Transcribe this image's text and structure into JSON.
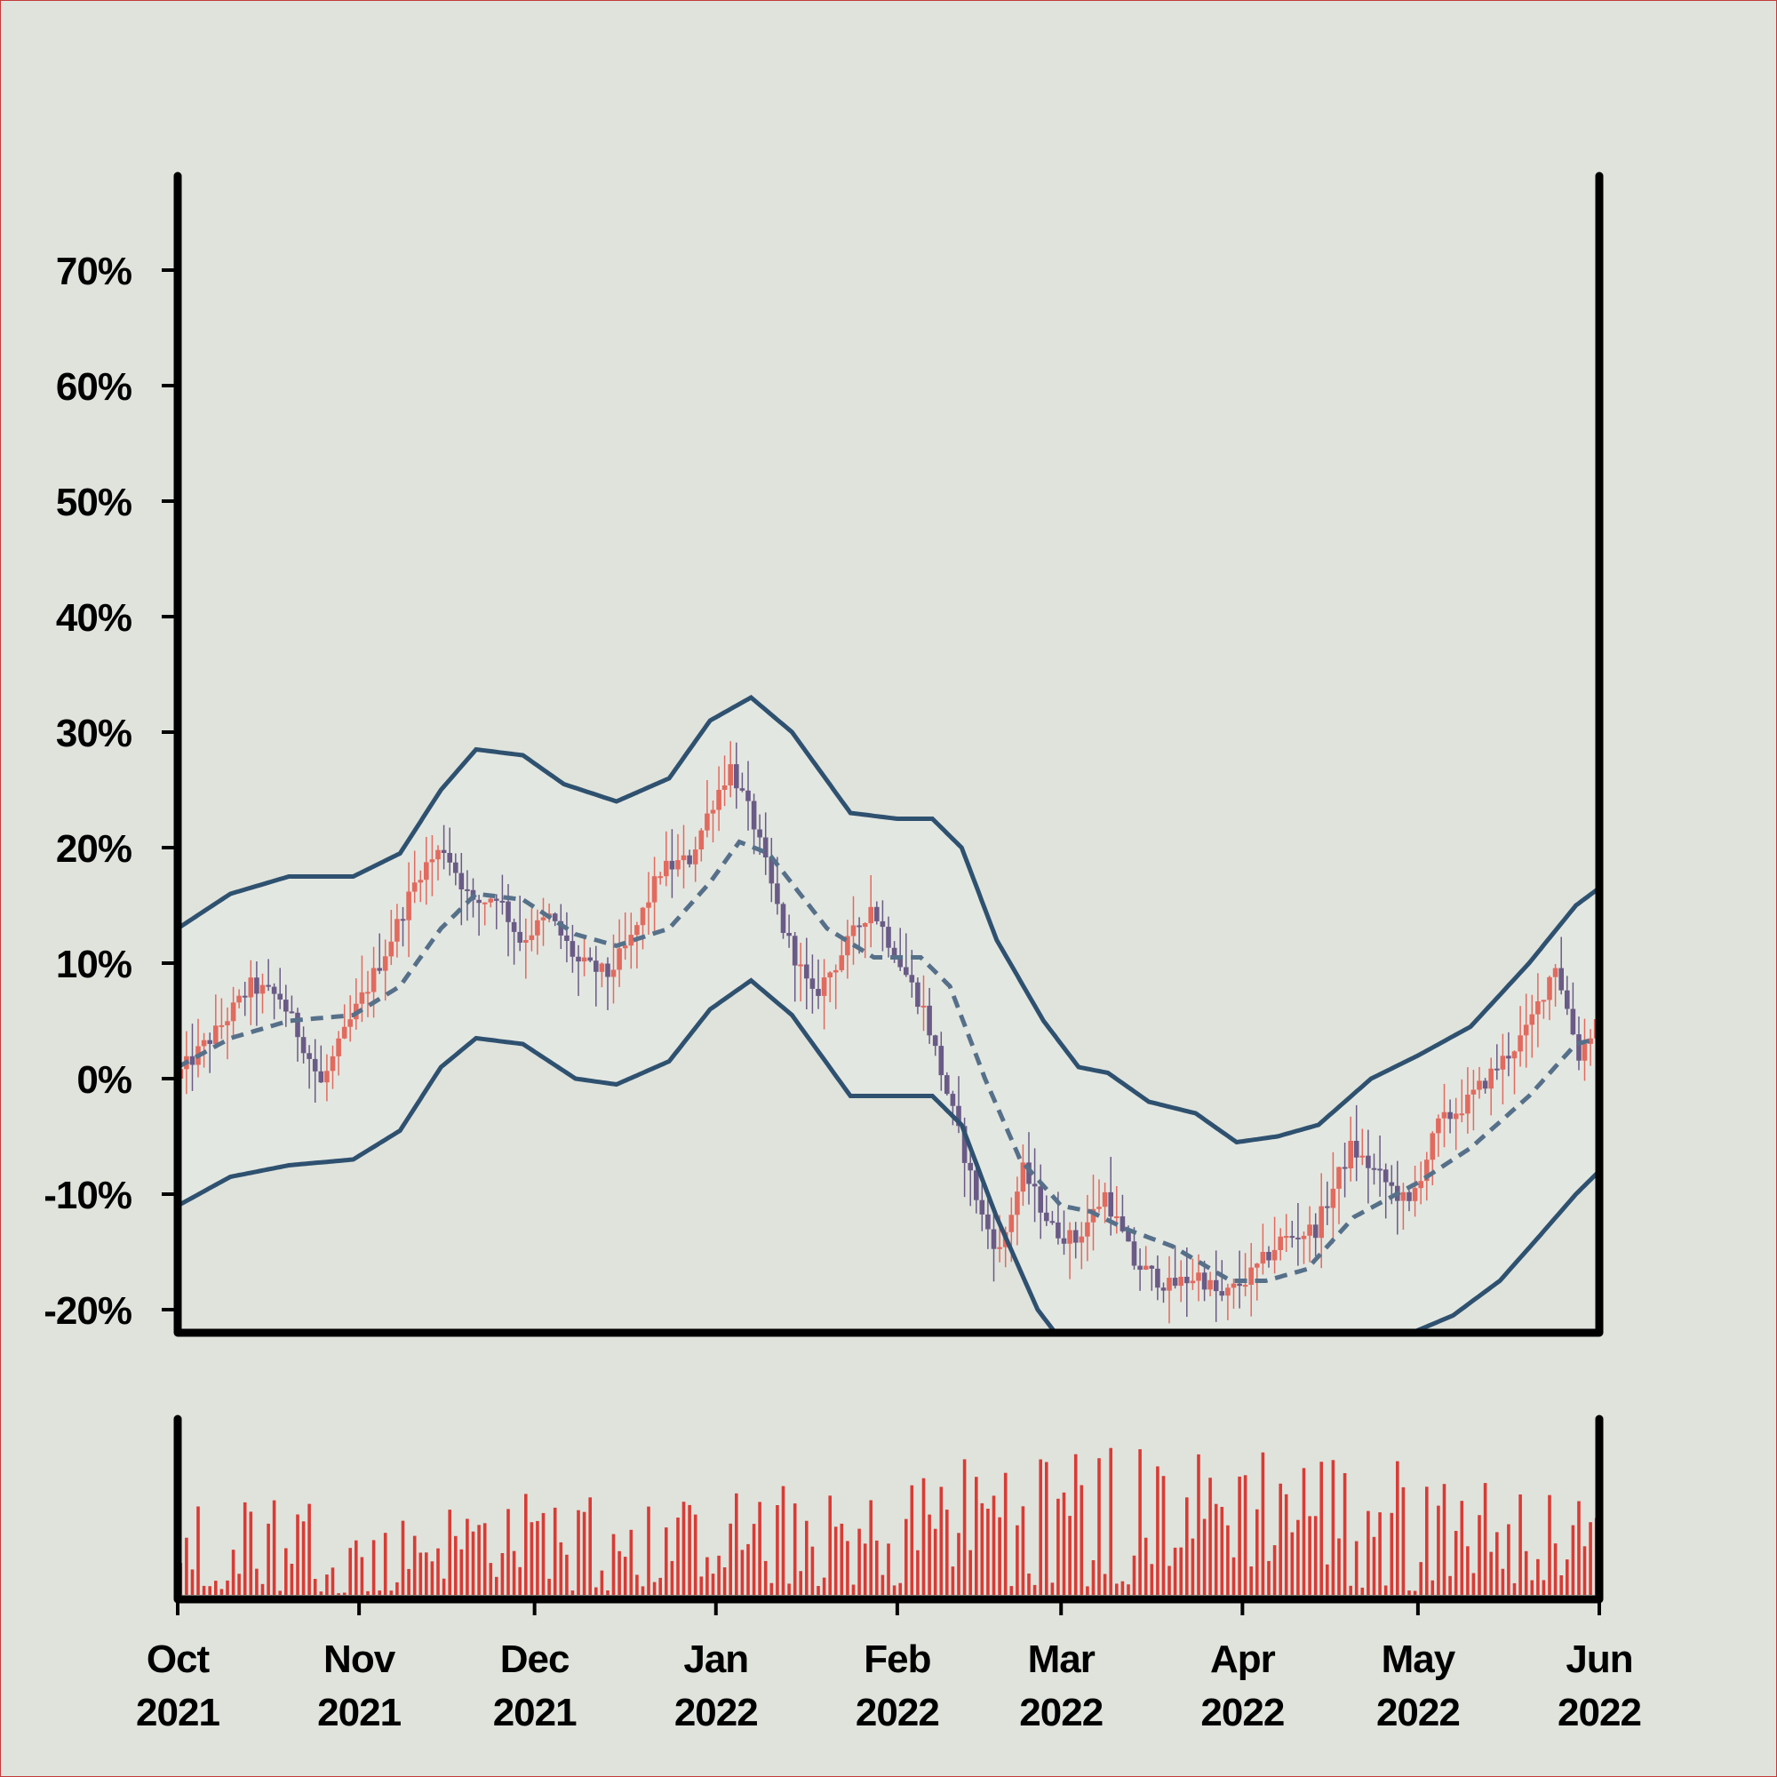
{
  "chart_data": {
    "type": "candlestick",
    "y_unit": "% change",
    "y_ticks": [
      -20,
      -10,
      0,
      10,
      20,
      30,
      40,
      50,
      60,
      70
    ],
    "y_tick_labels": [
      "-20%",
      "-10%",
      "0%",
      "10%",
      "20%",
      "30%",
      "40%",
      "50%",
      "60%",
      "70%"
    ],
    "ylim": [
      -22,
      78
    ],
    "x_range": [
      "2021-10-01",
      "2022-06-01"
    ],
    "x_ticks": [
      {
        "date": "2021-10-01",
        "month": "Oct",
        "year": "2021"
      },
      {
        "date": "2021-11-01",
        "month": "Nov",
        "year": "2021"
      },
      {
        "date": "2021-12-01",
        "month": "Dec",
        "year": "2021"
      },
      {
        "date": "2022-01-01",
        "month": "Jan",
        "year": "2022"
      },
      {
        "date": "2022-02-01",
        "month": "Feb",
        "year": "2022"
      },
      {
        "date": "2022-03-01",
        "month": "Mar",
        "year": "2022"
      },
      {
        "date": "2022-04-01",
        "month": "Apr",
        "year": "2022"
      },
      {
        "date": "2022-05-01",
        "month": "May",
        "year": "2022"
      },
      {
        "date": "2022-06-01",
        "month": "Jun",
        "year": "2022"
      }
    ],
    "close_path": [
      [
        "2021-10-01",
        0
      ],
      [
        "2021-10-08",
        4
      ],
      [
        "2021-10-14",
        8
      ],
      [
        "2021-10-19",
        7
      ],
      [
        "2021-10-23",
        3
      ],
      [
        "2021-10-26",
        -0.5
      ],
      [
        "2021-11-01",
        6
      ],
      [
        "2021-11-06",
        11
      ],
      [
        "2021-11-12",
        18
      ],
      [
        "2021-11-16",
        20
      ],
      [
        "2021-11-21",
        15
      ],
      [
        "2021-11-25",
        16
      ],
      [
        "2021-11-29",
        12
      ],
      [
        "2021-12-04",
        14
      ],
      [
        "2021-12-09",
        10
      ],
      [
        "2021-12-14",
        9
      ],
      [
        "2021-12-18",
        12
      ],
      [
        "2021-12-23",
        18
      ],
      [
        "2021-12-28",
        19
      ],
      [
        "2022-01-01",
        24
      ],
      [
        "2022-01-04",
        27
      ],
      [
        "2022-01-08",
        22
      ],
      [
        "2022-01-13",
        13
      ],
      [
        "2022-01-18",
        7
      ],
      [
        "2022-01-22",
        10
      ],
      [
        "2022-01-28",
        15
      ],
      [
        "2022-02-01",
        11
      ],
      [
        "2022-02-06",
        6
      ],
      [
        "2022-02-11",
        -3
      ],
      [
        "2022-02-16",
        -12
      ],
      [
        "2022-02-19",
        -15
      ],
      [
        "2022-02-23",
        -8
      ],
      [
        "2022-02-28",
        -13
      ],
      [
        "2022-03-04",
        -14
      ],
      [
        "2022-03-09",
        -10
      ],
      [
        "2022-03-14",
        -16
      ],
      [
        "2022-03-20",
        -18
      ],
      [
        "2022-03-25",
        -17
      ],
      [
        "2022-03-29",
        -19
      ],
      [
        "2022-04-03",
        -17
      ],
      [
        "2022-04-08",
        -14
      ],
      [
        "2022-04-14",
        -13
      ],
      [
        "2022-04-20",
        -6
      ],
      [
        "2022-04-26",
        -9
      ],
      [
        "2022-04-30",
        -11
      ],
      [
        "2022-05-05",
        -4
      ],
      [
        "2022-05-10",
        -2
      ],
      [
        "2022-05-15",
        1
      ],
      [
        "2022-05-20",
        4
      ],
      [
        "2022-05-25",
        10
      ],
      [
        "2022-05-29",
        2
      ],
      [
        "2022-06-01",
        5
      ]
    ],
    "moving_average": [
      [
        "2021-10-01",
        1
      ],
      [
        "2021-10-10",
        3.5
      ],
      [
        "2021-10-20",
        5
      ],
      [
        "2021-10-31",
        5.5
      ],
      [
        "2021-11-08",
        8
      ],
      [
        "2021-11-15",
        13
      ],
      [
        "2021-11-21",
        16
      ],
      [
        "2021-11-29",
        15.5
      ],
      [
        "2021-12-08",
        12.5
      ],
      [
        "2021-12-15",
        11.5
      ],
      [
        "2021-12-24",
        13
      ],
      [
        "2021-12-31",
        17
      ],
      [
        "2022-01-05",
        20.5
      ],
      [
        "2022-01-10",
        19.5
      ],
      [
        "2022-01-20",
        13
      ],
      [
        "2022-01-28",
        10.5
      ],
      [
        "2022-02-05",
        10.5
      ],
      [
        "2022-02-10",
        8
      ],
      [
        "2022-02-16",
        0
      ],
      [
        "2022-02-22",
        -7
      ],
      [
        "2022-03-01",
        -11
      ],
      [
        "2022-03-06",
        -11.5
      ],
      [
        "2022-03-12",
        -13
      ],
      [
        "2022-03-20",
        -14.5
      ],
      [
        "2022-03-30",
        -17.5
      ],
      [
        "2022-04-05",
        -17.5
      ],
      [
        "2022-04-12",
        -16.5
      ],
      [
        "2022-04-20",
        -12
      ],
      [
        "2022-05-01",
        -9
      ],
      [
        "2022-05-10",
        -6
      ],
      [
        "2022-05-20",
        -1.5
      ],
      [
        "2022-05-28",
        3
      ],
      [
        "2022-06-01",
        3.5
      ]
    ],
    "upper_band": [
      [
        "2021-10-01",
        13
      ],
      [
        "2021-10-10",
        16
      ],
      [
        "2021-10-20",
        17.5
      ],
      [
        "2021-10-31",
        17.5
      ],
      [
        "2021-11-08",
        19.5
      ],
      [
        "2021-11-15",
        25
      ],
      [
        "2021-11-21",
        28.5
      ],
      [
        "2021-11-29",
        28
      ],
      [
        "2021-12-06",
        25.5
      ],
      [
        "2021-12-15",
        24
      ],
      [
        "2021-12-24",
        26
      ],
      [
        "2021-12-31",
        31
      ],
      [
        "2022-01-07",
        33
      ],
      [
        "2022-01-14",
        30
      ],
      [
        "2022-01-24",
        23
      ],
      [
        "2022-02-01",
        22.5
      ],
      [
        "2022-02-07",
        22.5
      ],
      [
        "2022-02-12",
        20
      ],
      [
        "2022-02-18",
        12
      ],
      [
        "2022-02-26",
        5
      ],
      [
        "2022-03-04",
        1
      ],
      [
        "2022-03-09",
        0.5
      ],
      [
        "2022-03-16",
        -2
      ],
      [
        "2022-03-24",
        -3
      ],
      [
        "2022-03-31",
        -5.5
      ],
      [
        "2022-04-07",
        -5
      ],
      [
        "2022-04-14",
        -4
      ],
      [
        "2022-04-23",
        0
      ],
      [
        "2022-05-01",
        2
      ],
      [
        "2022-05-10",
        4.5
      ],
      [
        "2022-05-20",
        10
      ],
      [
        "2022-05-28",
        15
      ],
      [
        "2022-06-01",
        16.5
      ]
    ],
    "lower_band": [
      [
        "2021-10-01",
        -11
      ],
      [
        "2021-10-10",
        -8.5
      ],
      [
        "2021-10-20",
        -7.5
      ],
      [
        "2021-10-31",
        -7
      ],
      [
        "2021-11-08",
        -4.5
      ],
      [
        "2021-11-15",
        1
      ],
      [
        "2021-11-21",
        3.5
      ],
      [
        "2021-11-29",
        3
      ],
      [
        "2021-12-08",
        0
      ],
      [
        "2021-12-15",
        -0.5
      ],
      [
        "2021-12-24",
        1.5
      ],
      [
        "2021-12-31",
        6
      ],
      [
        "2022-01-07",
        8.5
      ],
      [
        "2022-01-14",
        5.5
      ],
      [
        "2022-01-24",
        -1.5
      ],
      [
        "2022-02-01",
        -1.5
      ],
      [
        "2022-02-07",
        -1.5
      ],
      [
        "2022-02-12",
        -4
      ],
      [
        "2022-02-18",
        -12
      ],
      [
        "2022-02-25",
        -20
      ],
      [
        "2022-02-28",
        -22
      ],
      [
        "2022-04-30",
        -22
      ],
      [
        "2022-05-07",
        -20.5
      ],
      [
        "2022-05-15",
        -17.5
      ],
      [
        "2022-05-22",
        -13.5
      ],
      [
        "2022-05-28",
        -10
      ],
      [
        "2022-06-01",
        -8
      ]
    ],
    "volume_profile": [
      [
        "2021-10-01",
        0.45
      ],
      [
        "2021-10-12",
        0.6
      ],
      [
        "2021-10-22",
        0.55
      ],
      [
        "2021-11-01",
        0.35
      ],
      [
        "2021-11-10",
        0.45
      ],
      [
        "2021-11-25",
        0.55
      ],
      [
        "2021-12-10",
        0.55
      ],
      [
        "2021-12-25",
        0.5
      ],
      [
        "2022-01-10",
        0.6
      ],
      [
        "2022-01-25",
        0.5
      ],
      [
        "2022-02-05",
        0.7
      ],
      [
        "2022-02-20",
        0.8
      ],
      [
        "2022-03-05",
        0.85
      ],
      [
        "2022-03-20",
        0.75
      ],
      [
        "2022-04-05",
        0.85
      ],
      [
        "2022-04-20",
        0.75
      ],
      [
        "2022-05-05",
        0.7
      ],
      [
        "2022-05-20",
        0.55
      ],
      [
        "2022-06-01",
        0.5
      ]
    ],
    "colors": {
      "background": "#dfe3dc",
      "band_fill": "#e3e7e1",
      "band_line": "#2f5170",
      "moving_average": "#56708a",
      "candle_up": "#e26a5e",
      "candle_down": "#6a5a86",
      "volume": "#d93b35",
      "axis": "#000000"
    },
    "grid": false,
    "legend": "none"
  }
}
